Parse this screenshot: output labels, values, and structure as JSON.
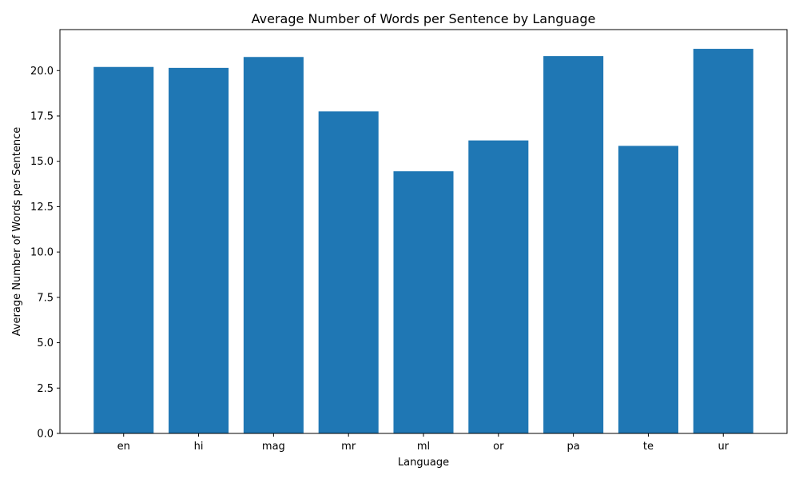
{
  "chart_data": {
    "type": "bar",
    "title": "Average Number of Words per Sentence by Language",
    "xlabel": "Language",
    "ylabel": "Average Number of Words per Sentence",
    "categories": [
      "en",
      "hi",
      "mag",
      "mr",
      "ml",
      "or",
      "pa",
      "te",
      "ur"
    ],
    "values": [
      20.2,
      20.15,
      20.75,
      17.75,
      14.45,
      16.15,
      20.8,
      15.85,
      21.2
    ],
    "ylim": [
      0,
      22.26
    ],
    "yticks": [
      "0.0",
      "2.5",
      "5.0",
      "7.5",
      "10.0",
      "12.5",
      "15.0",
      "17.5",
      "20.0"
    ],
    "bar_color": "#1f77b4",
    "grid": false,
    "legend": "none"
  }
}
